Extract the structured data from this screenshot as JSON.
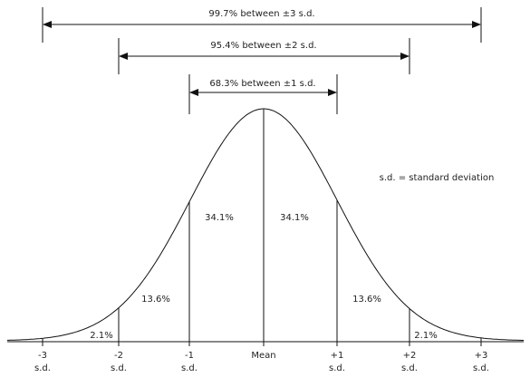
{
  "brackets": [
    {
      "label": "99.7% between  ±3 s.d."
    },
    {
      "label": "95.4% between  ±2 s.d."
    },
    {
      "label": "68.3% between  ±1 s.d."
    }
  ],
  "regions": [
    "2.1%",
    "13.6%",
    "34.1%",
    "34.1%",
    "13.6%",
    "2.1%"
  ],
  "axis_labels": [
    {
      "top": "-3",
      "bottom": "s.d."
    },
    {
      "top": "-2",
      "bottom": "s.d."
    },
    {
      "top": "-1",
      "bottom": "s.d."
    },
    {
      "top": "Mean"
    },
    {
      "top": "+1",
      "bottom": "s.d."
    },
    {
      "top": "+2",
      "bottom": "s.d."
    },
    {
      "top": "+3",
      "bottom": "s.d."
    }
  ],
  "note": "s.d. = standard deviation"
}
